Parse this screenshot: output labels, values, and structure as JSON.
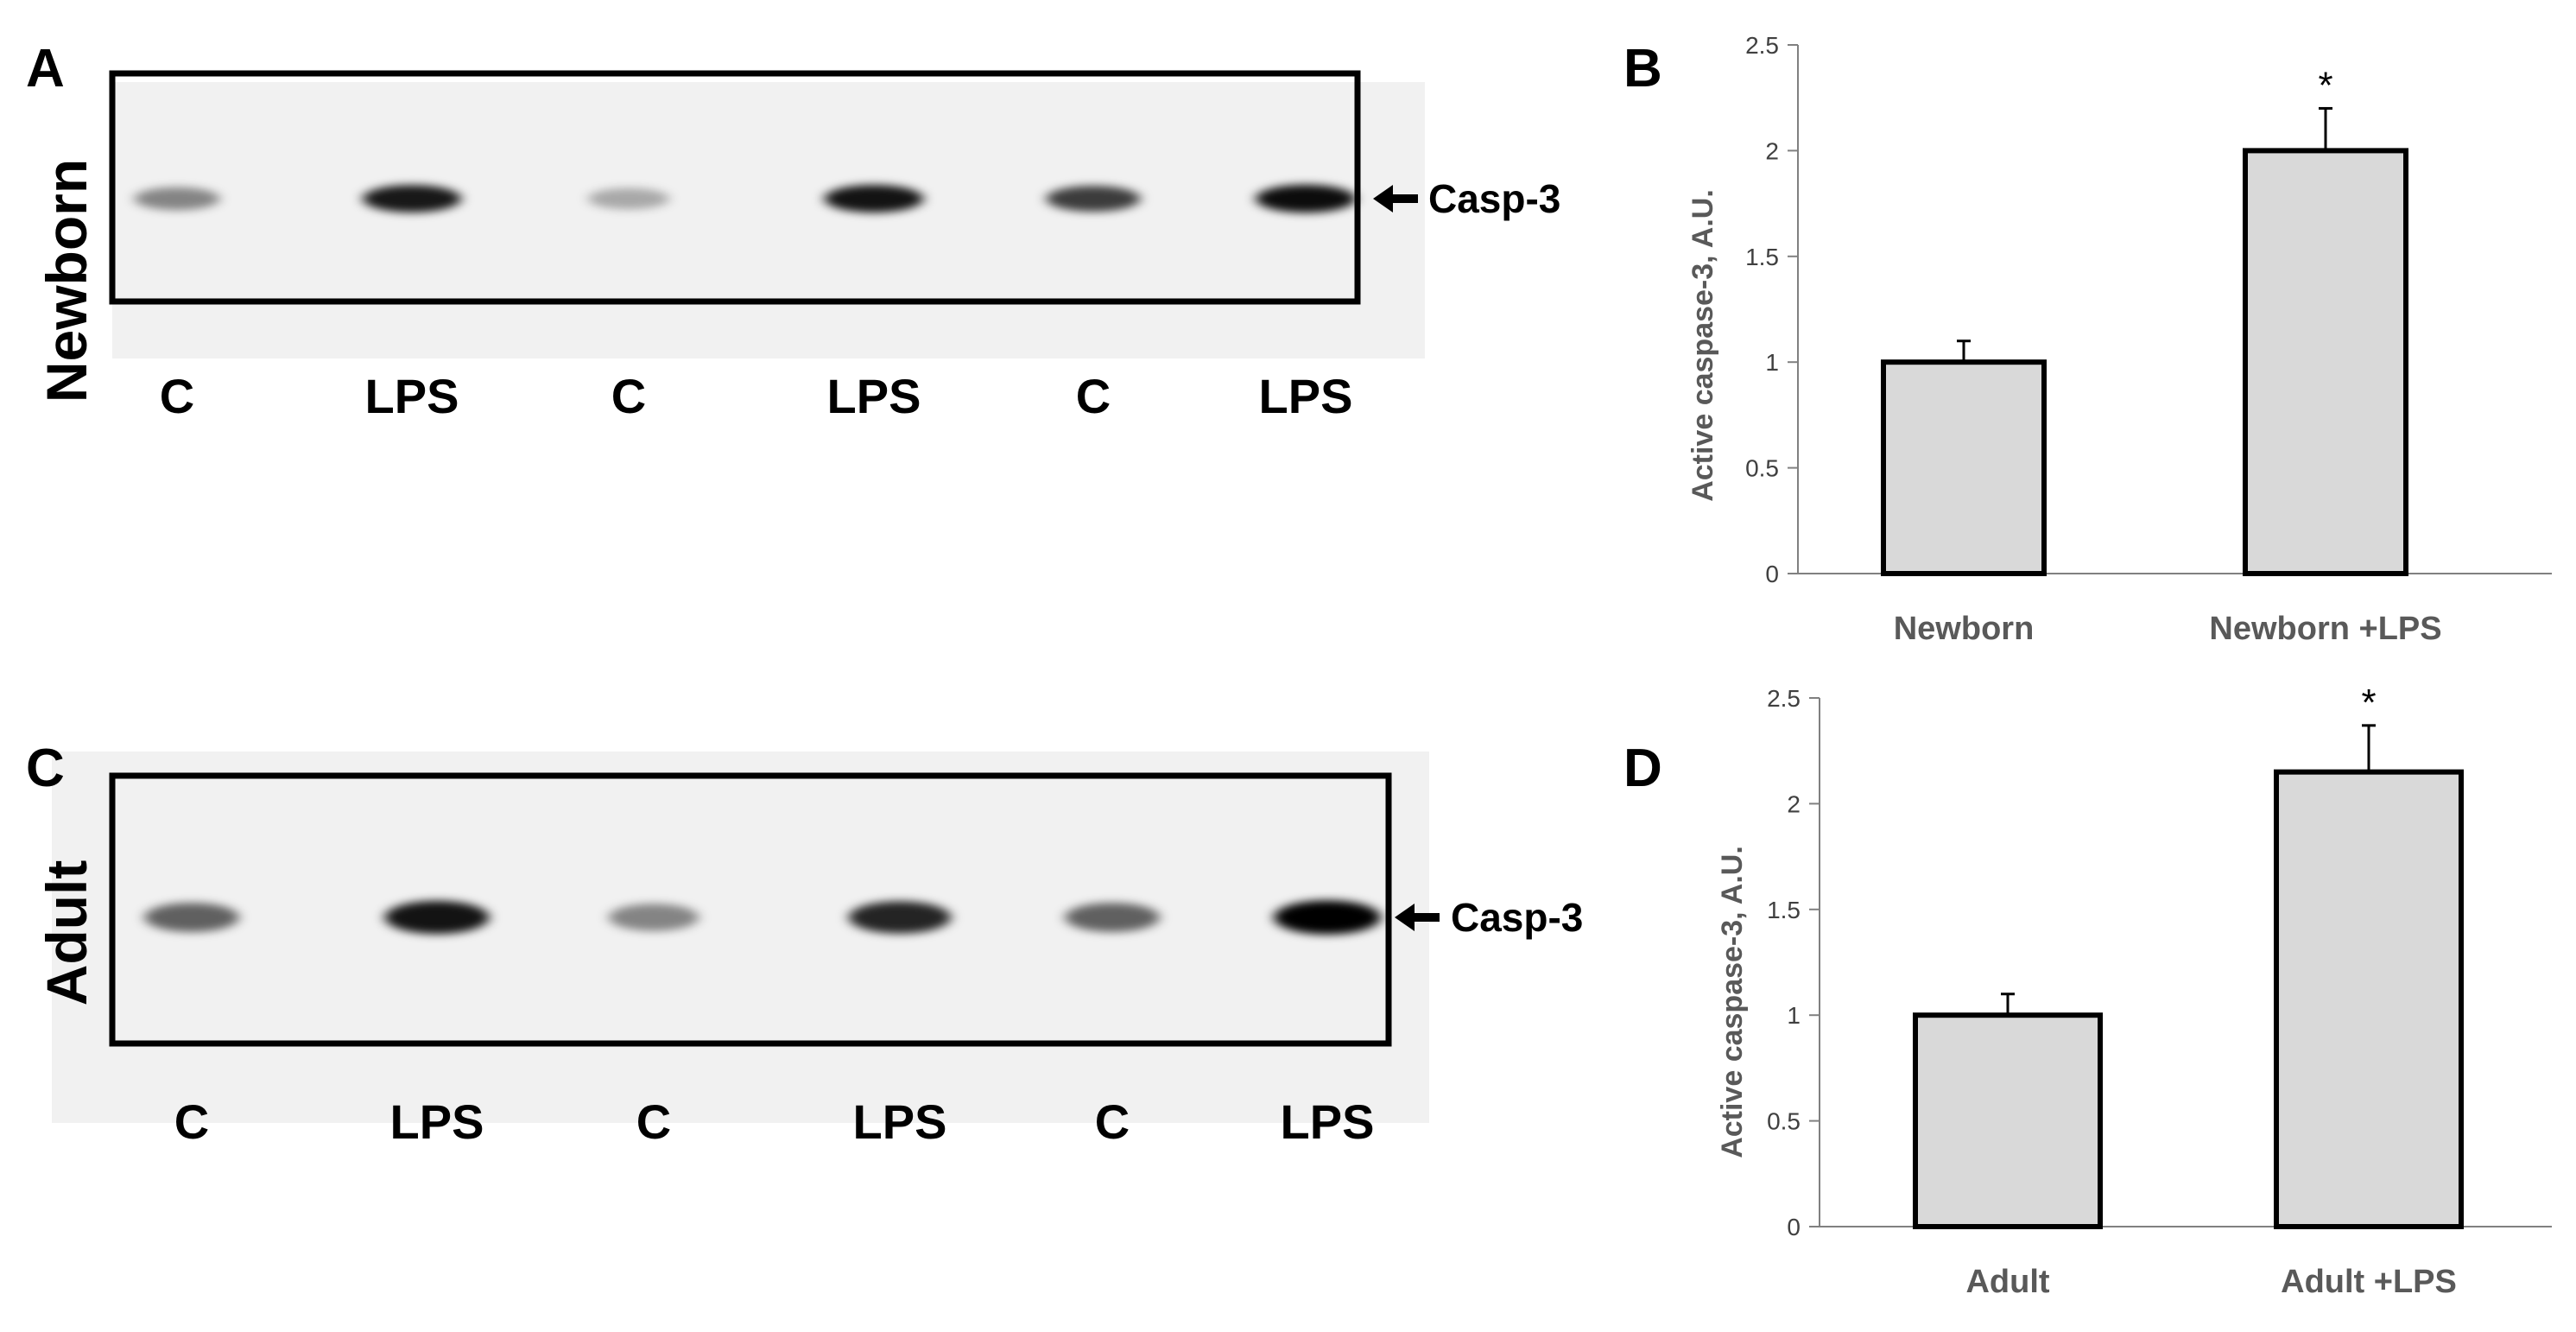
{
  "blots": [
    {
      "panel": "A",
      "side_label": "Newborn",
      "lanes": [
        "C",
        "LPS",
        "C",
        "LPS",
        "C",
        "LPS"
      ],
      "band_intensity": [
        0.45,
        0.9,
        0.3,
        0.92,
        0.75,
        0.95
      ],
      "marker": "Casp-3"
    },
    {
      "panel": "C",
      "side_label": "Adult",
      "lanes": [
        "C",
        "LPS",
        "C",
        "LPS",
        "C",
        "LPS"
      ],
      "band_intensity": [
        0.6,
        0.92,
        0.45,
        0.85,
        0.6,
        1.0
      ],
      "marker": "Casp-3"
    }
  ],
  "chart_data": [
    {
      "panel": "B",
      "type": "bar",
      "categories": [
        "Newborn",
        "Newborn +LPS"
      ],
      "values": [
        1.0,
        2.0
      ],
      "errors": [
        0.1,
        0.2
      ],
      "significance": [
        "",
        "*"
      ],
      "ylabel": "Active caspase-3, A.U.",
      "ylim": [
        0,
        2.5
      ],
      "yticks": [
        "0",
        "0.5",
        "1",
        "1.5",
        "2",
        "2.5"
      ],
      "bar_color": "#d9d9d9",
      "grid": false
    },
    {
      "panel": "D",
      "type": "bar",
      "categories": [
        "Adult",
        "Adult +LPS"
      ],
      "values": [
        1.0,
        2.15
      ],
      "errors": [
        0.1,
        0.22
      ],
      "significance": [
        "",
        "*"
      ],
      "ylabel": "Active caspase-3, A.U.",
      "ylim": [
        0,
        2.5
      ],
      "yticks": [
        "0",
        "0.5",
        "1",
        "1.5",
        "2",
        "2.5"
      ],
      "bar_color": "#d9d9d9",
      "grid": false
    }
  ]
}
